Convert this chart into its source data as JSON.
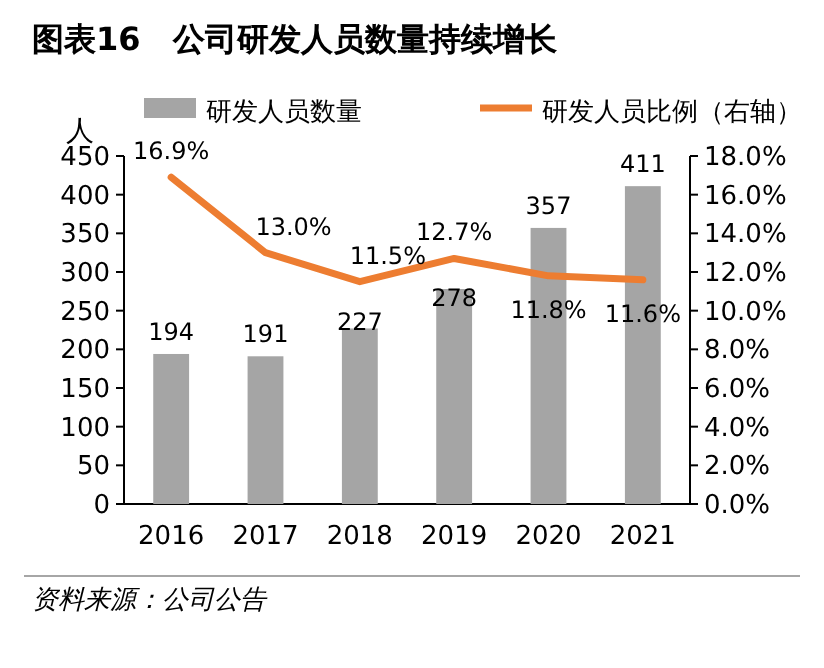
{
  "chart_data": {
    "type": "bar",
    "title": "图表16　公司研发人员数量持续增长",
    "ylabel": "人",
    "categories": [
      "2016",
      "2017",
      "2018",
      "2019",
      "2020",
      "2021"
    ],
    "series": [
      {
        "name": "研发人员数量",
        "color": "#a5a5a5",
        "values": [
          194,
          191,
          227,
          278,
          357,
          411
        ],
        "value_labels": [
          "194",
          "191",
          "227",
          "278",
          "357",
          "411"
        ]
      },
      {
        "name": "研发人员比例（右轴）",
        "type": "line",
        "axis": "y2",
        "color": "#ed7d31",
        "values": [
          16.9,
          13.0,
          11.5,
          12.7,
          11.8,
          11.6
        ],
        "value_labels": [
          "16.9%",
          "13.0%",
          "11.5%",
          "12.7%",
          "11.8%",
          "11.6%"
        ]
      }
    ],
    "ylim": [
      0,
      450
    ],
    "yticks": [
      0,
      50,
      100,
      150,
      200,
      250,
      300,
      350,
      400,
      450
    ],
    "y2lim": [
      0,
      18
    ],
    "y2ticks": [
      {
        "value": 0,
        "label": "0.0%"
      },
      {
        "value": 2,
        "label": "2.0%"
      },
      {
        "value": 4,
        "label": "4.0%"
      },
      {
        "value": 6,
        "label": "6.0%"
      },
      {
        "value": 8,
        "label": "8.0%"
      },
      {
        "value": 10,
        "label": "10.0%"
      },
      {
        "value": 12,
        "label": "12.0%"
      },
      {
        "value": 14,
        "label": "14.0%"
      },
      {
        "value": 16,
        "label": "16.0%"
      },
      {
        "value": 18,
        "label": "18.0%"
      }
    ],
    "legend": "top",
    "marker": "none",
    "annotations": [
      "资料来源：公司公告"
    ]
  }
}
